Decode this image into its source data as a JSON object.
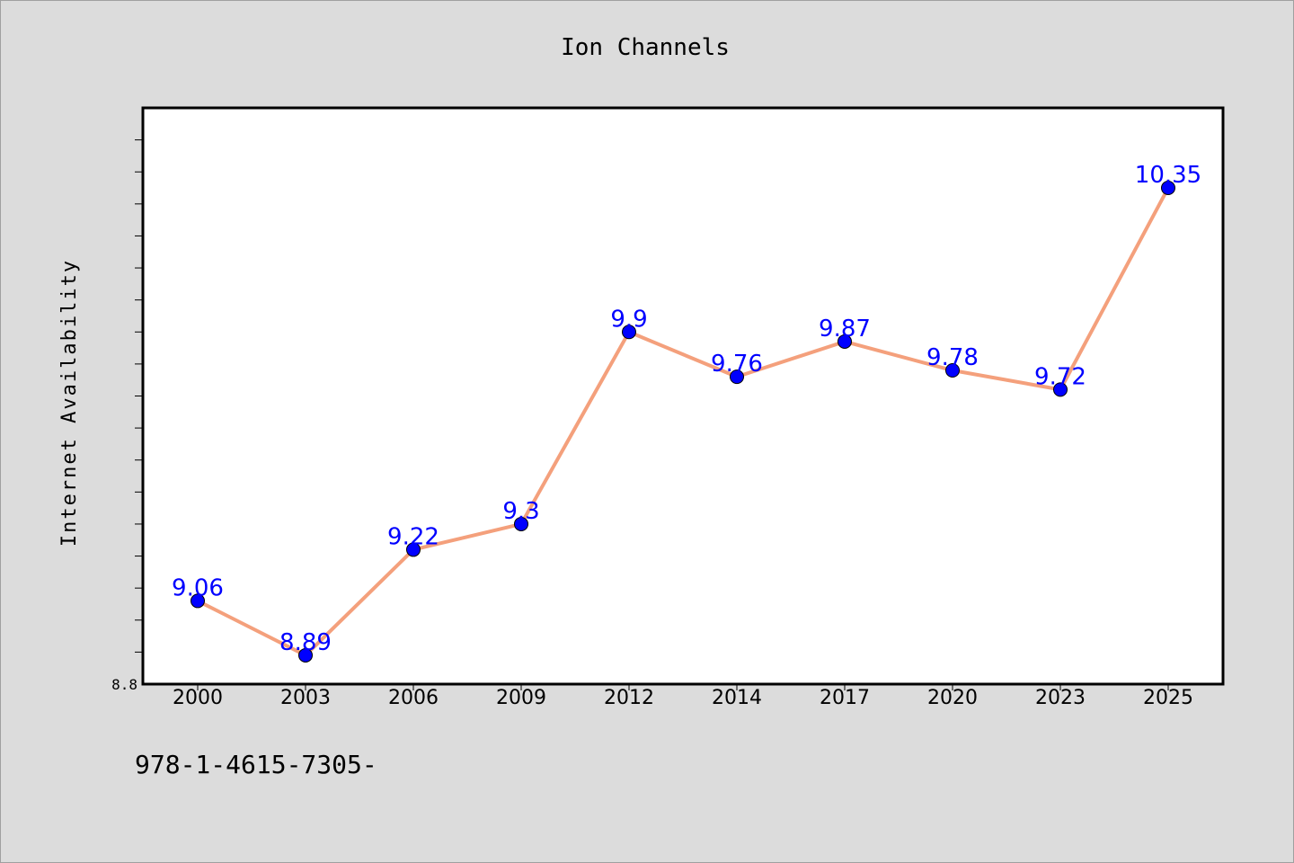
{
  "chart_data": {
    "type": "line",
    "title": "Ion Channels",
    "xlabel": "",
    "ylabel": "Internet Availability",
    "categories": [
      "2000",
      "2003",
      "2006",
      "2009",
      "2012",
      "2014",
      "2017",
      "2020",
      "2023",
      "2025"
    ],
    "series": [
      {
        "values": [
          9.06,
          8.89,
          9.22,
          9.3,
          9.9,
          9.76,
          9.87,
          9.78,
          9.72,
          10.35
        ]
      }
    ],
    "data_labels": [
      "9.06",
      "8.89",
      "9.22",
      "9.3",
      "9.9",
      "9.76",
      "9.87",
      "9.78",
      "9.72",
      "10.35"
    ],
    "ylim": [
      8.8,
      10.6
    ],
    "yticklabels": [
      "8.8"
    ],
    "grid": false,
    "colors": {
      "line": "#f4a07c",
      "marker": "#0000ff",
      "label": "#0000ff"
    }
  },
  "footer": {
    "text": "978-1-4615-7305-"
  }
}
